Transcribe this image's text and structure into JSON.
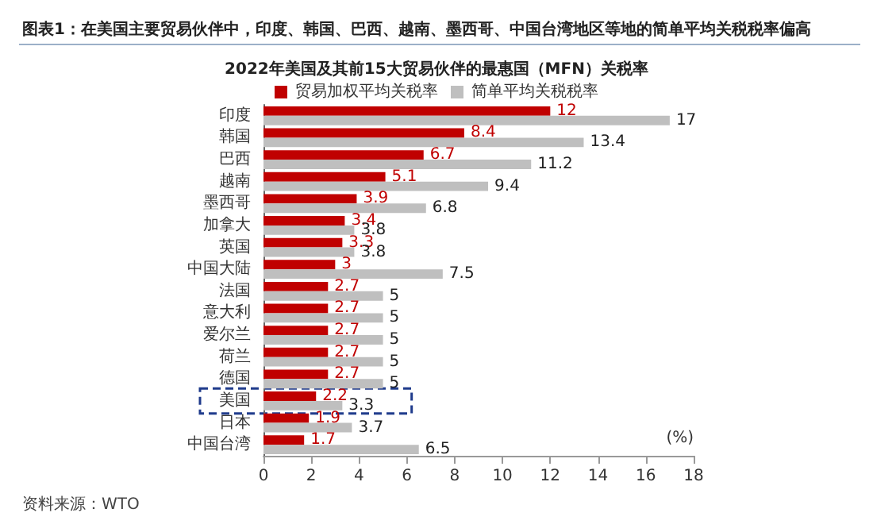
{
  "chart_data": {
    "type": "bar",
    "orientation": "horizontal",
    "title": "图表1：在美国主要贸易伙伴中，印度、韩国、巴西、越南、墨西哥、中国台湾地区等地的简单平均关税税率偏高",
    "subtitle": "2022年美国及其前15大贸易伙伴的最惠国（MFN）关税率",
    "xlabel": "(%)",
    "categories": [
      "印度",
      "韩国",
      "巴西",
      "越南",
      "墨西哥",
      "加拿大",
      "英国",
      "中国大陆",
      "法国",
      "意大利",
      "爱尔兰",
      "荷兰",
      "德国",
      "美国",
      "日本",
      "中国台湾"
    ],
    "series": [
      {
        "name": "贸易加权平均关税率",
        "color": "#c00000",
        "values": [
          12,
          8.4,
          6.7,
          5.1,
          3.9,
          3.4,
          3.3,
          3,
          2.7,
          2.7,
          2.7,
          2.7,
          2.7,
          2.2,
          1.9,
          1.7
        ]
      },
      {
        "name": "简单平均关税税率",
        "color": "#bfbfbf",
        "values": [
          17,
          13.4,
          11.2,
          9.4,
          6.8,
          3.8,
          3.8,
          7.5,
          5,
          5,
          5,
          5,
          5,
          3.3,
          3.7,
          6.5
        ]
      }
    ],
    "xlim": [
      0,
      18
    ],
    "xticks": [
      0,
      2,
      4,
      6,
      8,
      10,
      12,
      14,
      16,
      18
    ],
    "data_labels": true,
    "legend": "top",
    "grid": false,
    "annotations": [
      "资料来源：WTO"
    ]
  }
}
